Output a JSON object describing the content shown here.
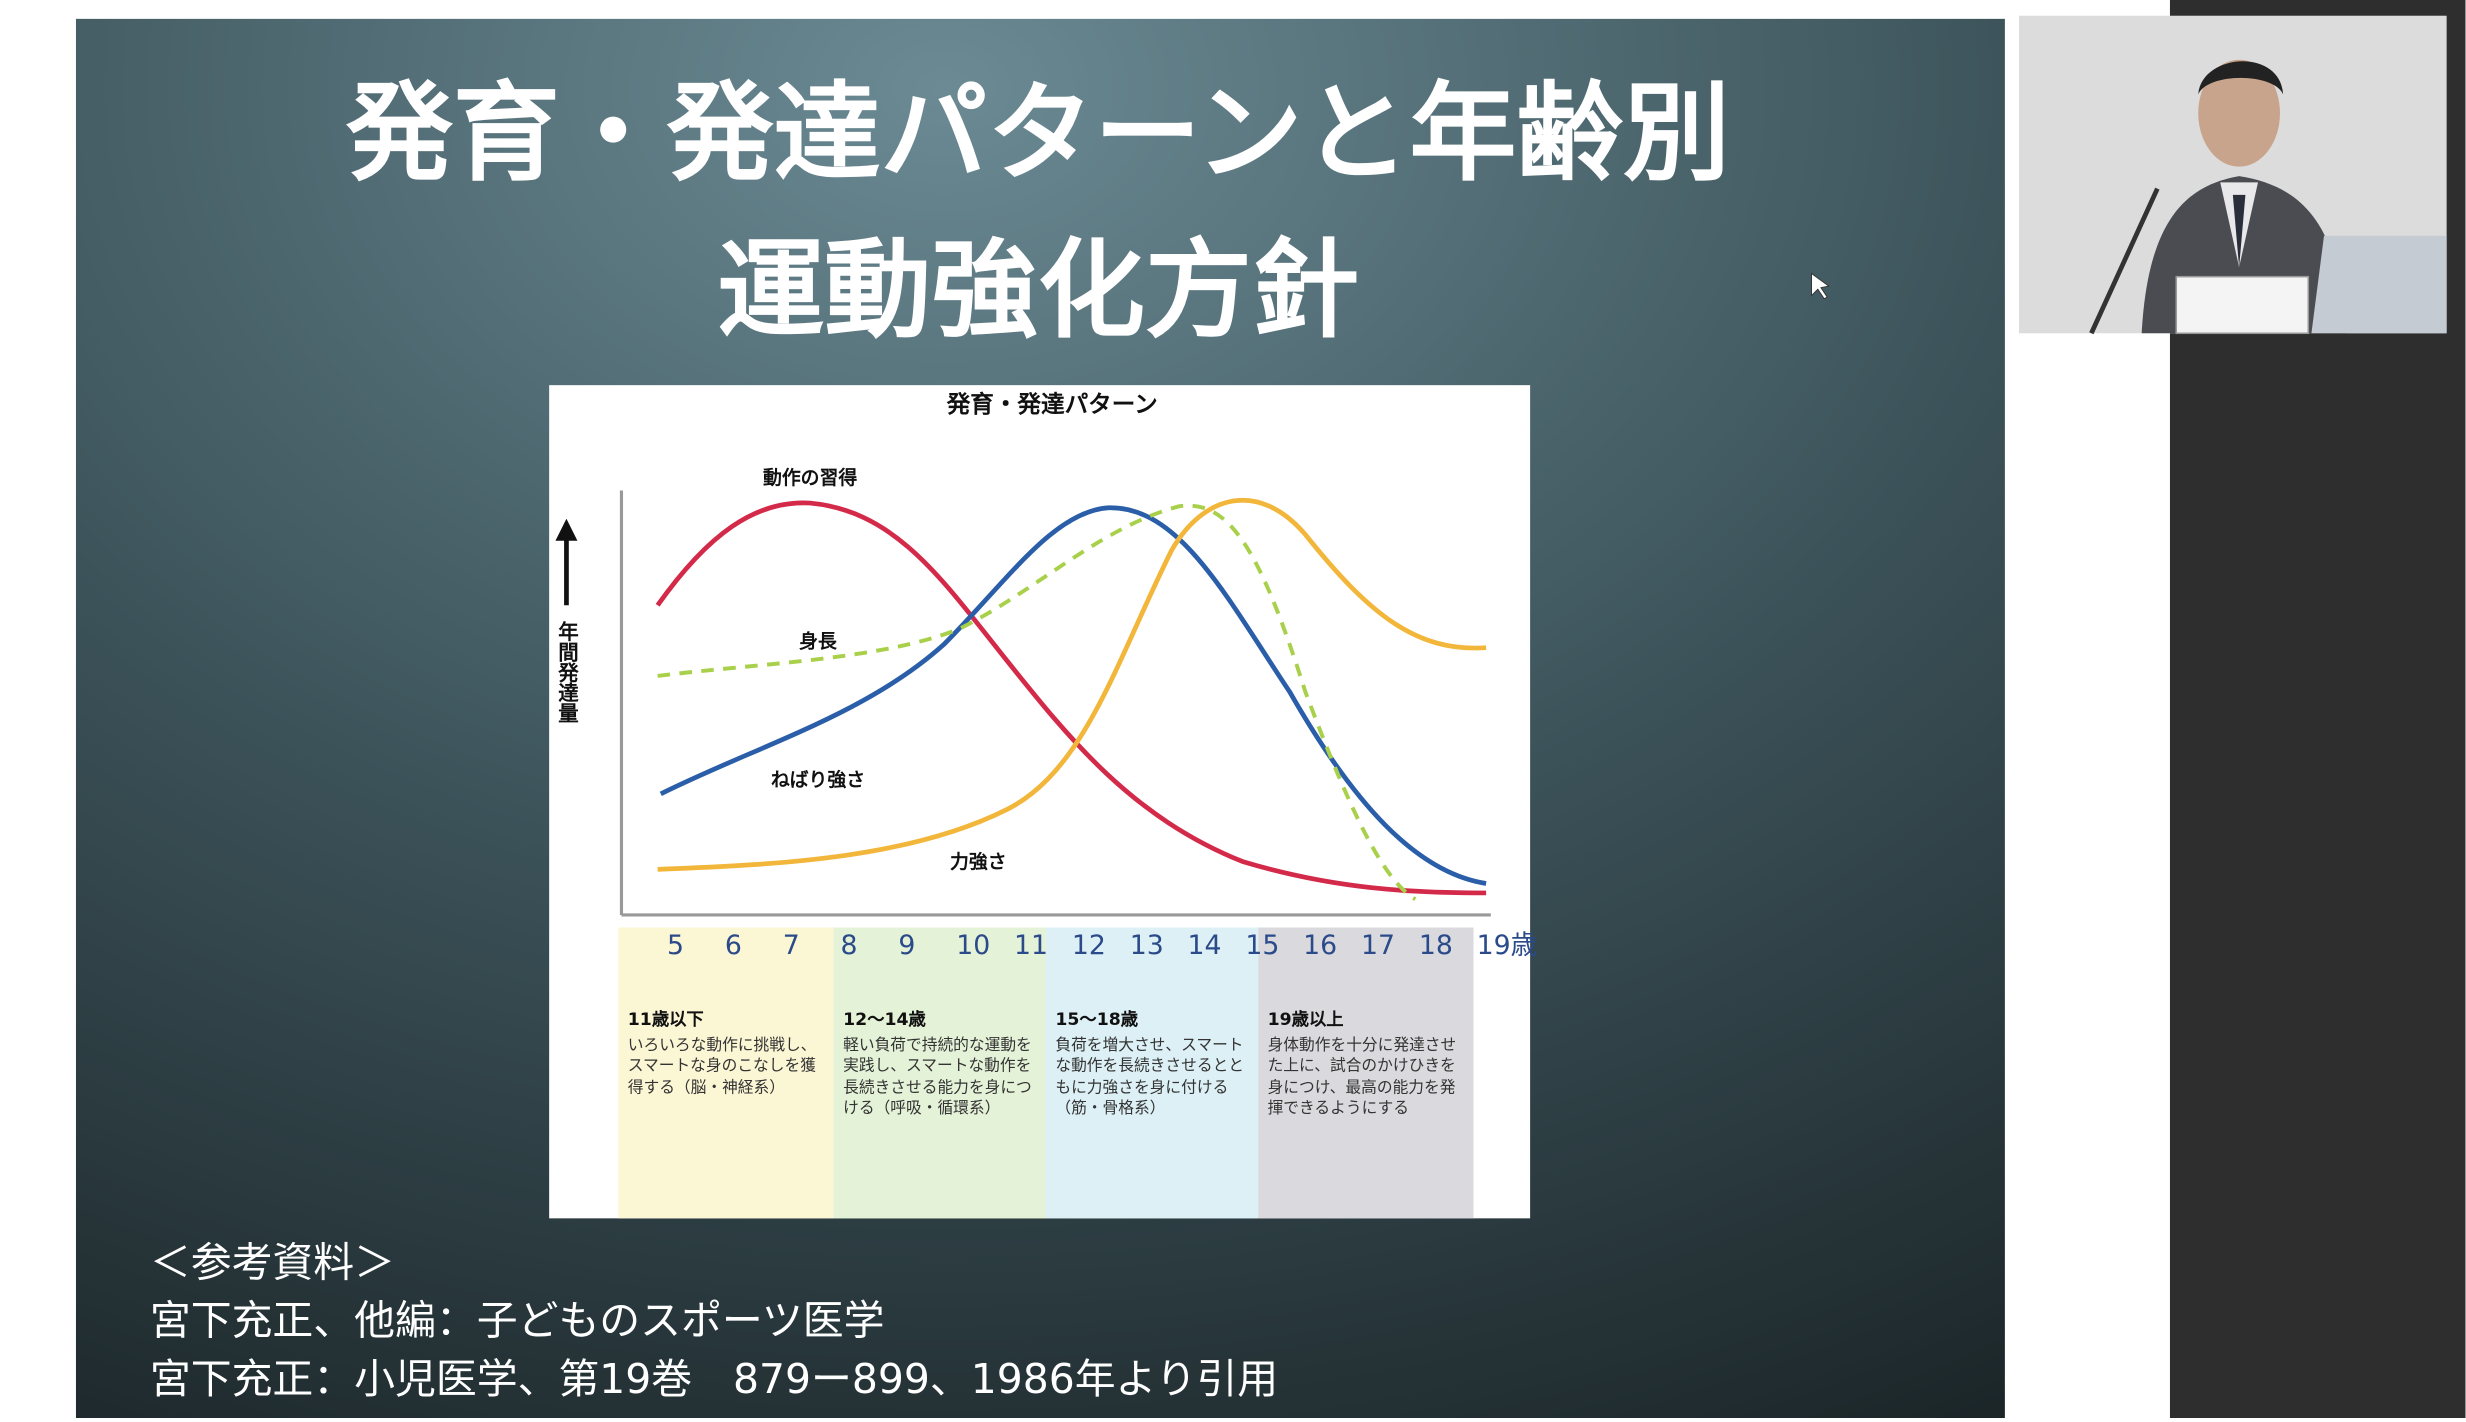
{
  "slide": {
    "title_lines": [
      "発育・発達パターンと年齢別",
      "運動強化方針"
    ],
    "figure": {
      "title": "発育・発達パターン",
      "y_label": "年間発達量",
      "curve_labels": [
        "動作の習得",
        "身長",
        "ねばり強さ",
        "力強さ"
      ],
      "x_labels": [
        "5",
        "6",
        "7",
        "8",
        "9",
        "10",
        "11",
        "12",
        "13",
        "14",
        "15",
        "16",
        "17",
        "18",
        "19歳"
      ],
      "stages": [
        {
          "heading": "11歳以下",
          "text": "いろいろな動作に挑戦し、スマートな身のこなしを獲得する（脳・神経系）"
        },
        {
          "heading": "12～14歳",
          "text": "軽い負荷で持続的な運動を実践し、スマートな動作を長続きさせる能力を身につける（呼吸・循環系）"
        },
        {
          "heading": "15～18歳",
          "text": "負荷を増大させ、スマートな動作を長続きさせるとともに力強さを身に付ける（筋・骨格系）"
        },
        {
          "heading": "19歳以上",
          "text": "身体動作を十分に発達させた上に、試合のかけひきを身につけ、最高の能力を発揮できるようにする"
        }
      ]
    },
    "references": [
      "＜参考資料＞",
      "宮下充正、他編：子どものスポーツ医学",
      "宮下充正：小児医学、第19巻　879ー899、1986年より引用"
    ]
  }
}
